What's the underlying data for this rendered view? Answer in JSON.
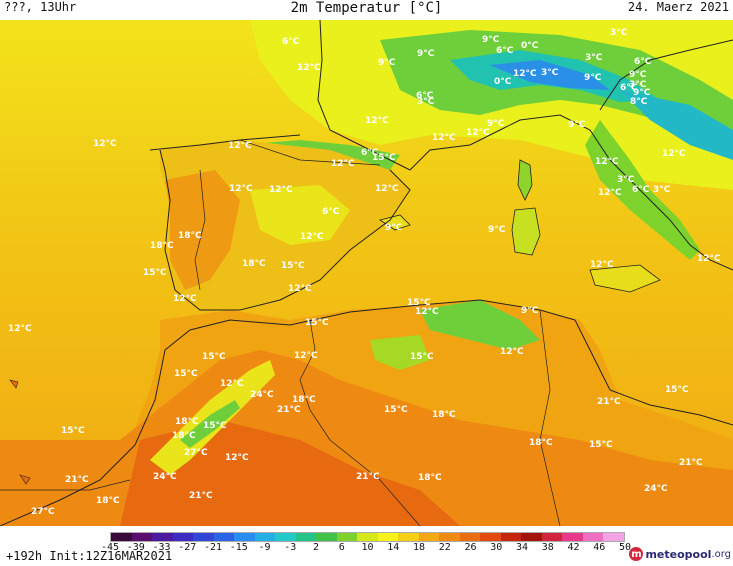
{
  "header": {
    "left": "???, 13Uhr",
    "title": "2m Temperatur [°C]",
    "date": "24. Maerz 2021"
  },
  "footer": {
    "run_info": "+192h Init:12Z16MAR2021",
    "logo_name": "meteopool",
    "logo_tld": ".org",
    "logo_mark": "m"
  },
  "legend": {
    "ticks": [
      "-45",
      "-39",
      "-33",
      "-27",
      "-21",
      "-15",
      "-9",
      "-3",
      "2",
      "6",
      "10",
      "14",
      "18",
      "22",
      "26",
      "30",
      "34",
      "38",
      "42",
      "46",
      "50"
    ],
    "colors": [
      "#3a0a3a",
      "#5a0f6e",
      "#4b1a9e",
      "#3e2cc2",
      "#2f46d6",
      "#2a64e4",
      "#2a8cf0",
      "#23aee6",
      "#22c9c9",
      "#23c48a",
      "#3ec24a",
      "#7fd12b",
      "#d7e81a",
      "#f7f11c",
      "#f6cf16",
      "#f1a915",
      "#ef8a13",
      "#eb6d11",
      "#e24a0e",
      "#c8260c",
      "#a3150a",
      "#d2233f",
      "#e83a8a",
      "#ef6fc3",
      "#f4a3e4"
    ]
  },
  "map_labels": [
    {
      "text": "6°C",
      "icon": "temp-label"
    },
    {
      "text": "9°C",
      "icon": "temp-label"
    },
    {
      "text": "12°C",
      "icon": "temp-label"
    },
    {
      "text": "9°C",
      "icon": "temp-label"
    },
    {
      "text": "9°C",
      "icon": "temp-label"
    },
    {
      "text": "6°C",
      "icon": "temp-label"
    },
    {
      "text": "0°C",
      "icon": "temp-label"
    },
    {
      "text": "3°C",
      "icon": "temp-label"
    },
    {
      "text": "3°C",
      "icon": "temp-label"
    },
    {
      "text": "6°C",
      "icon": "temp-label"
    },
    {
      "text": "9°C",
      "icon": "temp-label"
    },
    {
      "text": "3°C",
      "icon": "temp-label"
    },
    {
      "text": "0°C",
      "icon": "temp-label"
    },
    {
      "text": "12°C",
      "icon": "temp-label"
    },
    {
      "text": "3°C",
      "icon": "temp-label"
    },
    {
      "text": "9°C",
      "icon": "temp-label"
    },
    {
      "text": "6°C",
      "icon": "temp-label"
    },
    {
      "text": "9°C",
      "icon": "temp-label"
    },
    {
      "text": "8°C",
      "icon": "temp-label"
    },
    {
      "text": "3°C",
      "icon": "temp-label"
    },
    {
      "text": "6°C",
      "icon": "temp-label"
    },
    {
      "text": "12°C",
      "icon": "temp-label"
    },
    {
      "text": "12°C",
      "icon": "temp-label"
    },
    {
      "text": "9°C",
      "icon": "temp-label"
    },
    {
      "text": "12°C",
      "icon": "temp-label"
    },
    {
      "text": "9°C",
      "icon": "temp-label"
    },
    {
      "text": "12°C",
      "icon": "temp-label"
    },
    {
      "text": "12°C",
      "icon": "temp-label"
    },
    {
      "text": "12°C",
      "icon": "temp-label"
    },
    {
      "text": "12°C",
      "icon": "temp-label"
    },
    {
      "text": "6°C",
      "icon": "temp-label"
    },
    {
      "text": "15°C",
      "icon": "temp-label"
    },
    {
      "text": "12°C",
      "icon": "temp-label"
    },
    {
      "text": "12°C",
      "icon": "temp-label"
    },
    {
      "text": "12°C",
      "icon": "temp-label"
    },
    {
      "text": "12°C",
      "icon": "temp-label"
    },
    {
      "text": "3°C",
      "icon": "temp-label"
    },
    {
      "text": "6°C",
      "icon": "temp-label"
    },
    {
      "text": "12°C",
      "icon": "temp-label"
    },
    {
      "text": "3°C",
      "icon": "temp-label"
    },
    {
      "text": "6°C",
      "icon": "temp-label"
    },
    {
      "text": "12°C",
      "icon": "temp-label"
    },
    {
      "text": "9°C",
      "icon": "temp-label"
    },
    {
      "text": "9°C",
      "icon": "temp-label"
    },
    {
      "text": "12°C",
      "icon": "temp-label"
    },
    {
      "text": "12°C",
      "icon": "temp-label"
    },
    {
      "text": "18°C",
      "icon": "temp-label"
    },
    {
      "text": "18°C",
      "icon": "temp-label"
    },
    {
      "text": "15°C",
      "icon": "temp-label"
    },
    {
      "text": "18°C",
      "icon": "temp-label"
    },
    {
      "text": "15°C",
      "icon": "temp-label"
    },
    {
      "text": "12°C",
      "icon": "temp-label"
    },
    {
      "text": "12°C",
      "icon": "temp-label"
    },
    {
      "text": "12°C",
      "icon": "temp-label"
    },
    {
      "text": "15°C",
      "icon": "temp-label"
    },
    {
      "text": "15°C",
      "icon": "temp-label"
    },
    {
      "text": "12°C",
      "icon": "temp-label"
    },
    {
      "text": "9°C",
      "icon": "temp-label"
    },
    {
      "text": "12°C",
      "icon": "temp-label"
    },
    {
      "text": "15°C",
      "icon": "temp-label"
    },
    {
      "text": "12°C",
      "icon": "temp-label"
    },
    {
      "text": "15°C",
      "icon": "temp-label"
    },
    {
      "text": "15°C",
      "icon": "temp-label"
    },
    {
      "text": "12°C",
      "icon": "temp-label"
    },
    {
      "text": "24°C",
      "icon": "temp-label"
    },
    {
      "text": "18°C",
      "icon": "temp-label"
    },
    {
      "text": "21°C",
      "icon": "temp-label"
    },
    {
      "text": "15°C",
      "icon": "temp-label"
    },
    {
      "text": "18°C",
      "icon": "temp-label"
    },
    {
      "text": "21°C",
      "icon": "temp-label"
    },
    {
      "text": "15°C",
      "icon": "temp-label"
    },
    {
      "text": "18°C",
      "icon": "temp-label"
    },
    {
      "text": "15°C",
      "icon": "temp-label"
    },
    {
      "text": "15°C",
      "icon": "temp-label"
    },
    {
      "text": "18°C",
      "icon": "temp-label"
    },
    {
      "text": "27°C",
      "icon": "temp-label"
    },
    {
      "text": "12°C",
      "icon": "temp-label"
    },
    {
      "text": "18°C",
      "icon": "temp-label"
    },
    {
      "text": "15°C",
      "icon": "temp-label"
    },
    {
      "text": "24°C",
      "icon": "temp-label"
    },
    {
      "text": "21°C",
      "icon": "temp-label"
    },
    {
      "text": "18°C",
      "icon": "temp-label"
    },
    {
      "text": "21°C",
      "icon": "temp-label"
    },
    {
      "text": "24°C",
      "icon": "temp-label"
    },
    {
      "text": "21°C",
      "icon": "temp-label"
    },
    {
      "text": "21°C",
      "icon": "temp-label"
    },
    {
      "text": "18°C",
      "icon": "temp-label"
    },
    {
      "text": "27°C",
      "icon": "temp-label"
    },
    {
      "text": "18°C",
      "icon": "temp-label"
    },
    {
      "text": "18°C",
      "icon": "temp-label"
    }
  ]
}
